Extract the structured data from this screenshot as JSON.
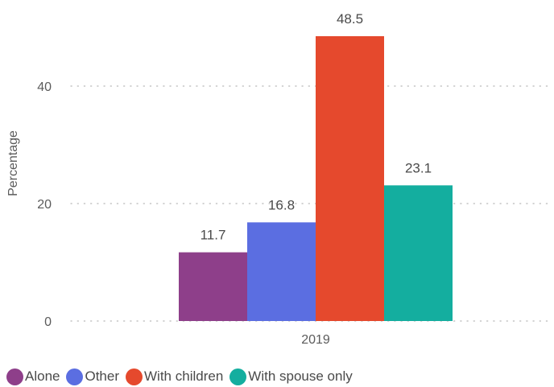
{
  "chart_data": {
    "type": "bar",
    "categories": [
      "2019"
    ],
    "series": [
      {
        "name": "Alone",
        "values": [
          11.7
        ],
        "color": "#8e3f8a"
      },
      {
        "name": "Other",
        "values": [
          16.8
        ],
        "color": "#5b6ee1"
      },
      {
        "name": "With children",
        "values": [
          48.5
        ],
        "color": "#e5492d"
      },
      {
        "name": "With spouse only",
        "values": [
          23.1
        ],
        "color": "#14ae9f"
      }
    ],
    "ylabel": "Percentage",
    "xlabel": "",
    "ylim": [
      0,
      50
    ],
    "yticks": [
      0,
      20,
      40
    ],
    "grid": true,
    "legend_position": "bottom-left",
    "data_labels": true
  }
}
